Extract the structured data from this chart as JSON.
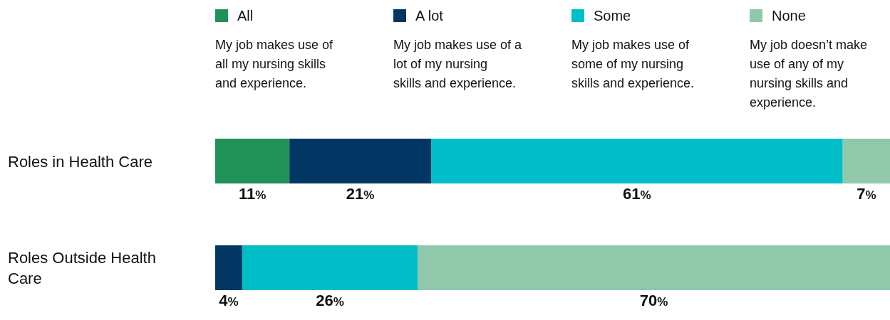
{
  "chart_data": {
    "type": "bar",
    "orientation": "horizontal",
    "stacked": true,
    "categories": [
      "Roles in Health Care",
      "Roles Outside Health Care"
    ],
    "series": [
      {
        "name": "All",
        "color": "#21915a",
        "values": [
          11,
          null
        ],
        "value_labels": [
          "11%",
          null
        ]
      },
      {
        "name": "A lot",
        "color": "#033763",
        "values": [
          21,
          4
        ],
        "value_labels": [
          "21%",
          "4%"
        ]
      },
      {
        "name": "Some",
        "color": "#00bec8",
        "values": [
          61,
          26
        ],
        "value_labels": [
          "61%",
          "26%"
        ]
      },
      {
        "name": "None",
        "color": "#90c8ab",
        "values": [
          7,
          70
        ],
        "value_labels": [
          "7%",
          "70%"
        ]
      }
    ],
    "legend": "top",
    "annotations": [
      "My job makes use of all my nursing skills and experience.",
      "My job makes use of a lot of my nursing skills and experience.",
      "My job makes use of some of my nursing skills and experience.",
      "My job doesn’t make use of any of my nursing skills and experience."
    ]
  }
}
